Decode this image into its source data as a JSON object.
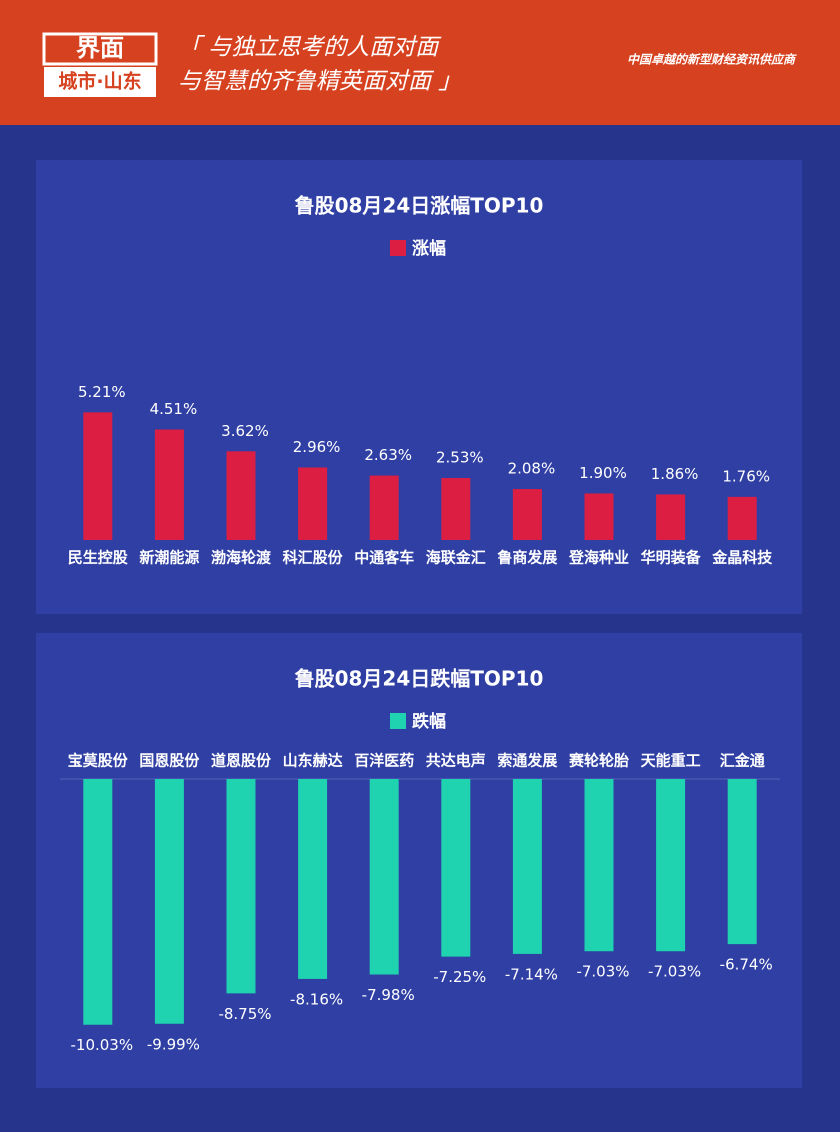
{
  "header": {
    "logo_top": "界面",
    "logo_bottom": "城市·山东",
    "slogan_line1": "「 与独立思考的人面对面",
    "slogan_line2": "与智慧的齐鲁精英面对面 」",
    "tagline": "中国卓越的新型财经资讯供应商"
  },
  "chart_data": [
    {
      "type": "bar",
      "title": "鲁股08月24日涨幅TOP10",
      "categories": [
        "民生控股",
        "新潮能源",
        "渤海轮渡",
        "科汇股份",
        "中通客车",
        "海联金汇",
        "鲁商发展",
        "登海种业",
        "华明装备",
        "金晶科技"
      ],
      "series": [
        {
          "name": "涨幅",
          "color": "#dc1e43",
          "values": [
            5.21,
            4.51,
            3.62,
            2.96,
            2.63,
            2.53,
            2.08,
            1.9,
            1.86,
            1.76
          ],
          "value_labels": [
            "5.21%",
            "4.51%",
            "3.62%",
            "2.96%",
            "2.63%",
            "2.53%",
            "2.08%",
            "1.90%",
            "1.86%",
            "1.76%"
          ]
        }
      ]
    },
    {
      "type": "bar",
      "title": "鲁股08月24日跌幅TOP10",
      "categories": [
        "宝莫股份",
        "国恩股份",
        "道恩股份",
        "山东赫达",
        "百洋医药",
        "共达电声",
        "索通发展",
        "赛轮轮胎",
        "天能重工",
        "汇金通"
      ],
      "series": [
        {
          "name": "跌幅",
          "color": "#1fd3b0",
          "values": [
            -10.03,
            -9.99,
            -8.75,
            -8.16,
            -7.98,
            -7.25,
            -7.14,
            -7.03,
            -7.03,
            -6.74
          ],
          "value_labels": [
            "-10.03%",
            "-9.99%",
            "-8.75%",
            "-8.16%",
            "-7.98%",
            "-7.25%",
            "-7.14%",
            "-7.03%",
            "-7.03%",
            "-6.74%"
          ]
        }
      ]
    }
  ]
}
